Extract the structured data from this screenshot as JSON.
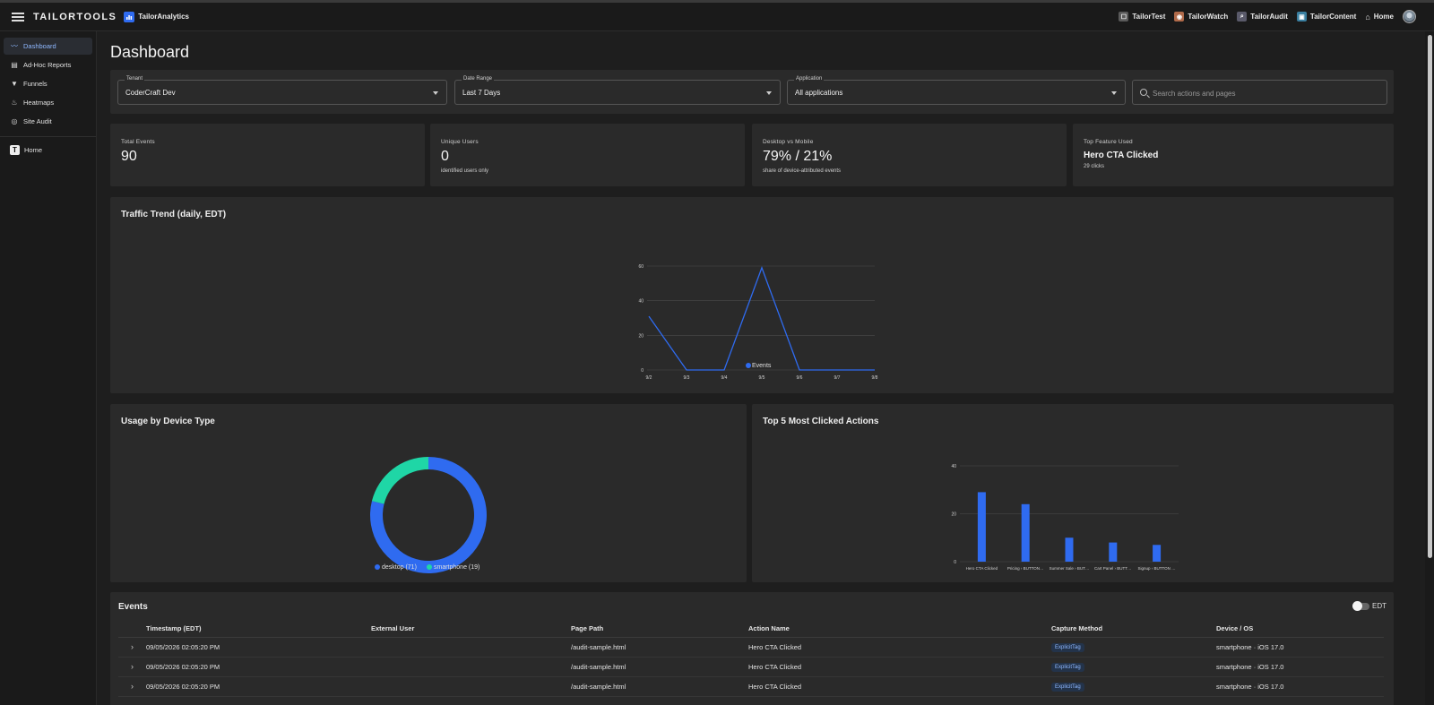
{
  "topbar": {
    "brand": "TAILORTOOLS",
    "app": "TailorAnalytics",
    "links": [
      {
        "label": "TailorTest",
        "icon": "test-icon",
        "color": "#5a5a5a"
      },
      {
        "label": "TailorWatch",
        "icon": "watch-icon",
        "color": "#b06a4a"
      },
      {
        "label": "TailorAudit",
        "icon": "audit-icon",
        "color": "#5a5a6a"
      },
      {
        "label": "TailorContent",
        "icon": "content-icon",
        "color": "#3a7fa0"
      }
    ],
    "home": "Home"
  },
  "sidebar": {
    "items": [
      {
        "label": "Dashboard",
        "icon": "trend-icon",
        "active": true
      },
      {
        "label": "Ad-Hoc Reports",
        "icon": "report-icon"
      },
      {
        "label": "Funnels",
        "icon": "filter-icon"
      },
      {
        "label": "Heatmaps",
        "icon": "flame-icon"
      },
      {
        "label": "Site Audit",
        "icon": "target-icon"
      }
    ],
    "home": "Home"
  },
  "page": {
    "title": "Dashboard"
  },
  "filters": {
    "tenant_label": "Tenant",
    "tenant_value": "CoderCraft Dev",
    "date_label": "Date Range",
    "date_value": "Last 7 Days",
    "app_label": "Application",
    "app_value": "All applications",
    "search_placeholder": "Search actions and pages"
  },
  "stats": {
    "total_events": {
      "label": "Total Events",
      "value": "90"
    },
    "unique_users": {
      "label": "Unique Users",
      "value": "0",
      "sub": "identified users only"
    },
    "desktop_mobile": {
      "label": "Desktop vs Mobile",
      "value": "79% / 21%",
      "sub": "share of device-attributed events"
    },
    "top_feature": {
      "label": "Top Feature Used",
      "value": "Hero CTA Clicked",
      "sub": "29 clicks"
    }
  },
  "traffic": {
    "title": "Traffic Trend (daily, EDT)"
  },
  "device": {
    "title": "Usage by Device Type"
  },
  "top_actions": {
    "title": "Top 5 Most Clicked Actions"
  },
  "colors": {
    "primary": "#2f6bf0",
    "secondary": "#1fd6a6"
  },
  "chart_data": [
    {
      "type": "line",
      "title": "Traffic Trend (daily, EDT)",
      "x": [
        "9/2",
        "9/3",
        "9/4",
        "9/5",
        "9/6",
        "9/7",
        "9/8"
      ],
      "series": [
        {
          "name": "Events",
          "values": [
            31,
            0,
            0,
            59,
            0,
            0,
            0
          ]
        }
      ],
      "ylim": [
        0,
        60
      ],
      "yticks": [
        0,
        20,
        40,
        60
      ],
      "grid": true,
      "legend": "bottom"
    },
    {
      "type": "pie",
      "title": "Usage by Device Type",
      "donut": true,
      "slices": [
        {
          "name": "desktop",
          "value": 71,
          "legend": "desktop (71)"
        },
        {
          "name": "smartphone",
          "value": 19,
          "legend": "smartphone (19)"
        }
      ],
      "legend": "bottom"
    },
    {
      "type": "bar",
      "title": "Top 5 Most Clicked Actions",
      "categories": [
        "Hero CTA Clicked",
        "Pricing › BUTTON…",
        "Summer Sale › BUT…",
        "Cart Panel › BUTT…",
        "Signup › BUTTON …"
      ],
      "series": [
        {
          "name": "Clicks",
          "values": [
            29,
            24,
            10,
            8,
            7
          ]
        }
      ],
      "ylim": [
        0,
        40
      ],
      "yticks": [
        0,
        20,
        40
      ],
      "grid": true,
      "legend": "bottom"
    }
  ],
  "events": {
    "title": "Events",
    "toggle_label": "EDT",
    "columns": [
      "Timestamp (EDT)",
      "External User",
      "Page Path",
      "Action Name",
      "Capture Method",
      "Device / OS"
    ],
    "rows": [
      {
        "timestamp": "09/05/2026 02:05:20 PM",
        "user": "",
        "path": "/audit-sample.html",
        "action": "Hero CTA Clicked",
        "method": "ExplicitTag",
        "device": "smartphone · iOS 17.0"
      },
      {
        "timestamp": "09/05/2026 02:05:20 PM",
        "user": "",
        "path": "/audit-sample.html",
        "action": "Hero CTA Clicked",
        "method": "ExplicitTag",
        "device": "smartphone · iOS 17.0"
      },
      {
        "timestamp": "09/05/2026 02:05:20 PM",
        "user": "",
        "path": "/audit-sample.html",
        "action": "Hero CTA Clicked",
        "method": "ExplicitTag",
        "device": "smartphone · iOS 17.0"
      }
    ]
  }
}
